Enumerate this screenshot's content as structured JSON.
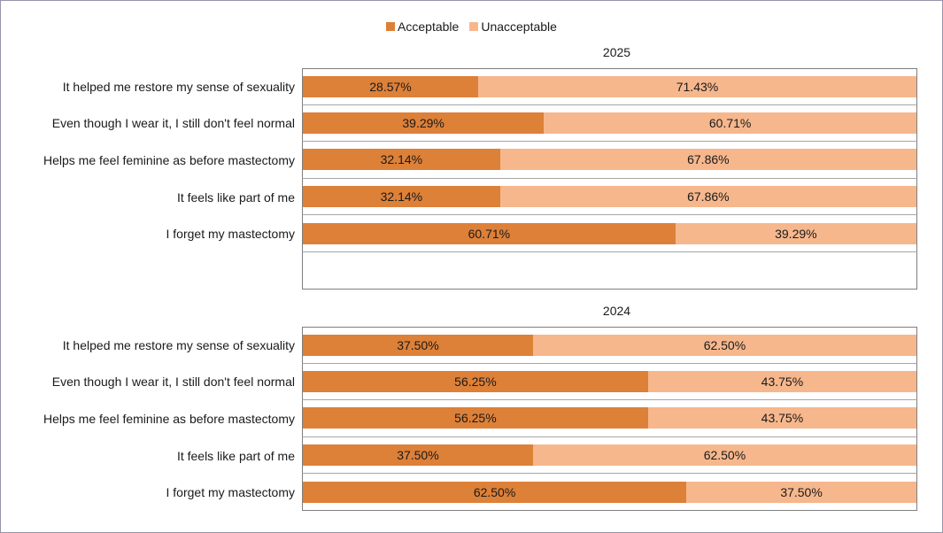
{
  "legend": {
    "items": [
      {
        "label": "Acceptable",
        "color": "#dd8038"
      },
      {
        "label": "Unacceptable",
        "color": "#f6b78d"
      }
    ],
    "position": "top-center"
  },
  "colors": {
    "acceptable": "#dd8038",
    "unacceptable": "#f6b78d",
    "plot_border": "#7f7f7f",
    "row_separator": "#a6a6a6",
    "frame_border": "#9595a9",
    "text": "#1a1a1a"
  },
  "chart_data": [
    {
      "type": "bar",
      "orientation": "horizontal",
      "stacked": true,
      "title": "2025",
      "xlim": [
        0,
        100
      ],
      "grid": "category-separator-lines",
      "legend_position": "top",
      "categories": [
        "It helped me restore my sense of sexuality",
        "Even though I wear it, I still don't feel normal",
        "Helps me feel feminine as before mastectomy",
        "It feels like part of me",
        "I forget my mastectomy"
      ],
      "series": [
        {
          "name": "Acceptable",
          "values": [
            28.57,
            39.29,
            32.14,
            32.14,
            60.71
          ]
        },
        {
          "name": "Unacceptable",
          "values": [
            71.43,
            60.71,
            67.86,
            67.86,
            39.29
          ]
        }
      ],
      "rows": [
        {
          "label": "It helped me restore my sense of sexuality",
          "acceptable": 28.57,
          "acceptable_text": "28.57%",
          "unacceptable": 71.43,
          "unacceptable_text": "71.43%"
        },
        {
          "label": "Even though I wear it, I still don't feel normal",
          "acceptable": 39.29,
          "acceptable_text": "39.29%",
          "unacceptable": 60.71,
          "unacceptable_text": "60.71%"
        },
        {
          "label": "Helps me feel feminine as before mastectomy",
          "acceptable": 32.14,
          "acceptable_text": "32.14%",
          "unacceptable": 67.86,
          "unacceptable_text": "67.86%"
        },
        {
          "label": "It feels like part of me",
          "acceptable": 32.14,
          "acceptable_text": "32.14%",
          "unacceptable": 67.86,
          "unacceptable_text": "67.86%"
        },
        {
          "label": "I forget my mastectomy",
          "acceptable": 60.71,
          "acceptable_text": "60.71%",
          "unacceptable": 39.29,
          "unacceptable_text": "39.29%"
        }
      ],
      "has_trailing_empty_row": true
    },
    {
      "type": "bar",
      "orientation": "horizontal",
      "stacked": true,
      "title": "2024",
      "xlim": [
        0,
        100
      ],
      "grid": "category-separator-lines",
      "legend_position": "none",
      "categories": [
        "It helped me restore my sense of sexuality",
        "Even though I wear it, I still don't feel normal",
        "Helps me feel feminine as before mastectomy",
        "It feels like part of me",
        "I forget my mastectomy"
      ],
      "series": [
        {
          "name": "Acceptable",
          "values": [
            37.5,
            56.25,
            56.25,
            37.5,
            62.5
          ]
        },
        {
          "name": "Unacceptable",
          "values": [
            62.5,
            43.75,
            43.75,
            62.5,
            37.5
          ]
        }
      ],
      "rows": [
        {
          "label": "It helped me restore my sense of sexuality",
          "acceptable": 37.5,
          "acceptable_text": "37.50%",
          "unacceptable": 62.5,
          "unacceptable_text": "62.50%"
        },
        {
          "label": "Even though I wear it, I still don't feel normal",
          "acceptable": 56.25,
          "acceptable_text": "56.25%",
          "unacceptable": 43.75,
          "unacceptable_text": "43.75%"
        },
        {
          "label": "Helps me feel feminine as before mastectomy",
          "acceptable": 56.25,
          "acceptable_text": "56.25%",
          "unacceptable": 43.75,
          "unacceptable_text": "43.75%"
        },
        {
          "label": "It feels like part of me",
          "acceptable": 37.5,
          "acceptable_text": "37.50%",
          "unacceptable": 62.5,
          "unacceptable_text": "62.50%"
        },
        {
          "label": "I forget my mastectomy",
          "acceptable": 62.5,
          "acceptable_text": "62.50%",
          "unacceptable": 37.5,
          "unacceptable_text": "37.50%"
        }
      ],
      "has_trailing_empty_row": false
    }
  ]
}
